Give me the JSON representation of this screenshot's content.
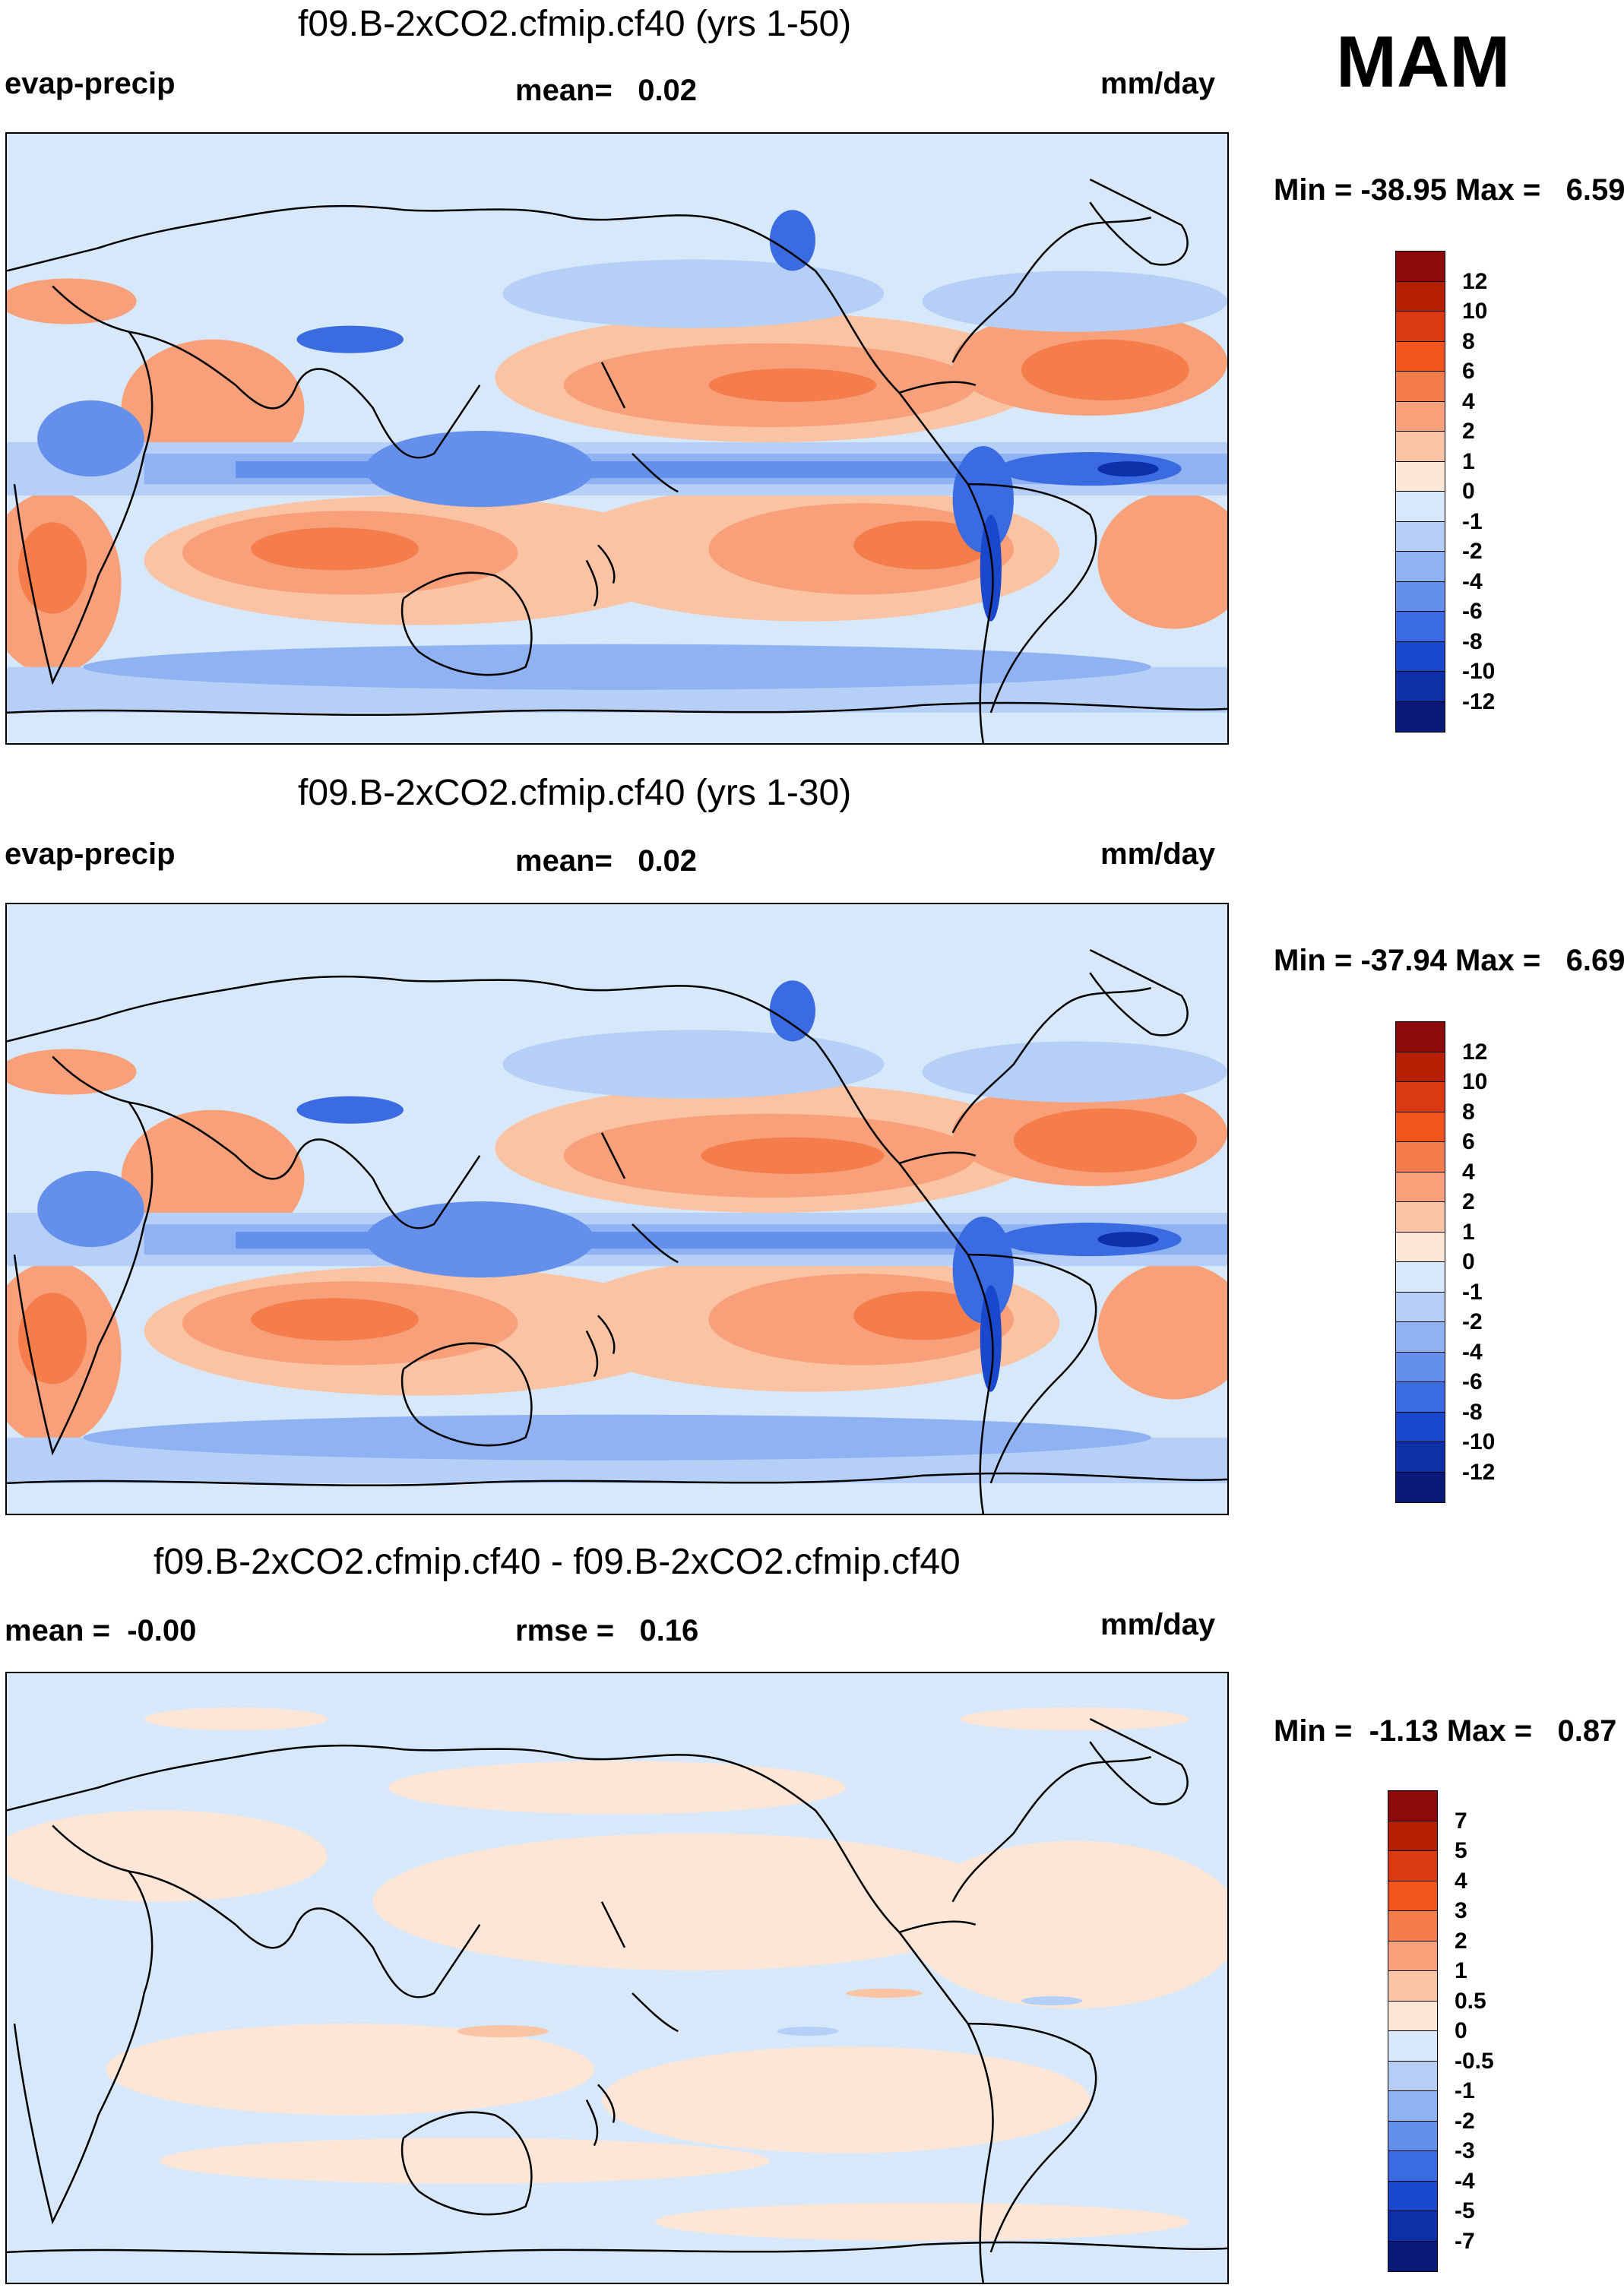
{
  "season": "MAM",
  "panels": [
    {
      "title": "f09.B-2xCO2.cfmip.cf40 (yrs 1-50)",
      "left_label": "evap-precip",
      "center_label": "mean=   0.02",
      "units": "mm/day",
      "minmax": "Min = -38.95 Max =   6.59",
      "colorbar_labels": [
        "12",
        "10",
        "8",
        "6",
        "4",
        "2",
        "1",
        "0",
        "-1",
        "-2",
        "-4",
        "-6",
        "-8",
        "-10",
        "-12"
      ],
      "colorbar_colors": [
        "#8c0a0a",
        "#b52005",
        "#d93a12",
        "#f2561e",
        "#f57d4c",
        "#f7a07a",
        "#fac3a4",
        "#fde6d6",
        "#d8e8fb",
        "#b5cff7",
        "#8fb2f2",
        "#648fea",
        "#3a6be0",
        "#1a48cc",
        "#0d2fa8",
        "#0a1a7a"
      ]
    },
    {
      "title": "f09.B-2xCO2.cfmip.cf40 (yrs 1-30)",
      "left_label": "evap-precip",
      "center_label": "mean=   0.02",
      "units": "mm/day",
      "minmax": "Min = -37.94 Max =   6.69",
      "colorbar_labels": [
        "12",
        "10",
        "8",
        "6",
        "4",
        "2",
        "1",
        "0",
        "-1",
        "-2",
        "-4",
        "-6",
        "-8",
        "-10",
        "-12"
      ],
      "colorbar_colors": [
        "#8c0a0a",
        "#b52005",
        "#d93a12",
        "#f2561e",
        "#f57d4c",
        "#f7a07a",
        "#fac3a4",
        "#fde6d6",
        "#d8e8fb",
        "#b5cff7",
        "#8fb2f2",
        "#648fea",
        "#3a6be0",
        "#1a48cc",
        "#0d2fa8",
        "#0a1a7a"
      ]
    },
    {
      "title": "f09.B-2xCO2.cfmip.cf40 - f09.B-2xCO2.cfmip.cf40",
      "left_label": "mean =  -0.00",
      "center_label": "rmse =   0.16",
      "units": "mm/day",
      "minmax": "Min =  -1.13 Max =   0.87",
      "colorbar_labels": [
        "7",
        "5",
        "4",
        "3",
        "2",
        "1",
        "0.5",
        "0",
        "-0.5",
        "-1",
        "-2",
        "-3",
        "-4",
        "-5",
        "-7"
      ],
      "colorbar_colors": [
        "#8c0a0a",
        "#b52005",
        "#d93a12",
        "#f2561e",
        "#f57d4c",
        "#f7a07a",
        "#fac3a4",
        "#fde6d6",
        "#d8e8fb",
        "#b5cff7",
        "#8fb2f2",
        "#648fea",
        "#3a6be0",
        "#1a48cc",
        "#0d2fa8",
        "#0a1a7a"
      ]
    }
  ]
}
